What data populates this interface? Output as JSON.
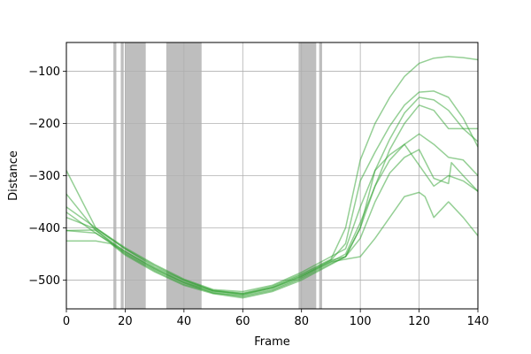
{
  "chart_data": {
    "type": "line",
    "title": "",
    "xlabel": "Frame",
    "ylabel": "Distance",
    "xlim": [
      0,
      140
    ],
    "ylim": [
      -555,
      -45
    ],
    "grid": true,
    "xticks": [
      0,
      20,
      40,
      60,
      80,
      100,
      120,
      140
    ],
    "yticks": [
      -500,
      -400,
      -300,
      -200,
      -100
    ],
    "line_color": "#2ca02c",
    "shade_color": "#bebebe",
    "shaded_ranges": [
      [
        16,
        17
      ],
      [
        18.5,
        19.5
      ],
      [
        20,
        27
      ],
      [
        34,
        46
      ],
      [
        79,
        85
      ],
      [
        86,
        87
      ]
    ],
    "series": [
      {
        "x": [
          0,
          10,
          20,
          30,
          40,
          50,
          60,
          70,
          80,
          90,
          95,
          100,
          105,
          110,
          115,
          120,
          125,
          130,
          135,
          140
        ],
        "values": [
          -290,
          -400,
          -440,
          -475,
          -500,
          -520,
          -525,
          -512,
          -488,
          -460,
          -400,
          -270,
          -200,
          -150,
          -110,
          -85,
          -75,
          -72,
          -74,
          -78
        ]
      },
      {
        "x": [
          0,
          10,
          20,
          30,
          40,
          50,
          60,
          70,
          80,
          90,
          95,
          100,
          105,
          110,
          115,
          120,
          125,
          130,
          135,
          140
        ],
        "values": [
          -335,
          -405,
          -445,
          -478,
          -505,
          -522,
          -528,
          -515,
          -493,
          -462,
          -430,
          -310,
          -255,
          -205,
          -165,
          -140,
          -138,
          -150,
          -190,
          -245
        ]
      },
      {
        "x": [
          0,
          10,
          20,
          30,
          40,
          50,
          60,
          70,
          80,
          90,
          95,
          100,
          105,
          110,
          115,
          120,
          125,
          130,
          135,
          140
        ],
        "values": [
          -360,
          -400,
          -438,
          -470,
          -498,
          -518,
          -522,
          -510,
          -485,
          -455,
          -440,
          -360,
          -290,
          -230,
          -180,
          -150,
          -155,
          -175,
          -210,
          -235
        ]
      },
      {
        "x": [
          0,
          10,
          20,
          30,
          40,
          50,
          60,
          70,
          80,
          90,
          95,
          100,
          105,
          110,
          115,
          120,
          125,
          130,
          135,
          140
        ],
        "values": [
          -370,
          -410,
          -448,
          -480,
          -505,
          -525,
          -530,
          -518,
          -495,
          -465,
          -450,
          -390,
          -320,
          -250,
          -200,
          -165,
          -175,
          -210,
          -210,
          -210
        ]
      },
      {
        "x": [
          0,
          10,
          20,
          30,
          40,
          50,
          60,
          70,
          80,
          90,
          95,
          100,
          105,
          110,
          115,
          120,
          125,
          130,
          135,
          140
        ],
        "values": [
          -380,
          -402,
          -440,
          -472,
          -500,
          -520,
          -526,
          -514,
          -490,
          -462,
          -455,
          -400,
          -320,
          -270,
          -240,
          -220,
          -240,
          -265,
          -270,
          -300
        ]
      },
      {
        "x": [
          0,
          10,
          20,
          30,
          40,
          50,
          60,
          70,
          80,
          90,
          95,
          100,
          105,
          110,
          115,
          120,
          125,
          130,
          131,
          135,
          140
        ],
        "values": [
          -405,
          -404,
          -450,
          -482,
          -508,
          -524,
          -532,
          -520,
          -497,
          -468,
          -455,
          -420,
          -350,
          -295,
          -265,
          -250,
          -305,
          -315,
          -275,
          -300,
          -330
        ]
      },
      {
        "x": [
          0,
          10,
          15,
          20,
          30,
          40,
          50,
          60,
          70,
          80,
          90,
          95,
          100,
          105,
          110,
          115,
          120,
          125,
          130,
          135,
          140
        ],
        "values": [
          -425,
          -425,
          -430,
          -452,
          -484,
          -510,
          -526,
          -534,
          -522,
          -500,
          -470,
          -455,
          -400,
          -290,
          -260,
          -240,
          -280,
          -320,
          -300,
          -310,
          -330
        ]
      },
      {
        "x": [
          0,
          10,
          20,
          30,
          40,
          50,
          60,
          70,
          80,
          90,
          95,
          100,
          105,
          110,
          115,
          120,
          122,
          125,
          130,
          135,
          140
        ],
        "values": [
          -405,
          -410,
          -445,
          -477,
          -503,
          -521,
          -527,
          -515,
          -492,
          -465,
          -460,
          -455,
          -420,
          -380,
          -340,
          -332,
          -340,
          -380,
          -350,
          -380,
          -415
        ]
      }
    ]
  }
}
